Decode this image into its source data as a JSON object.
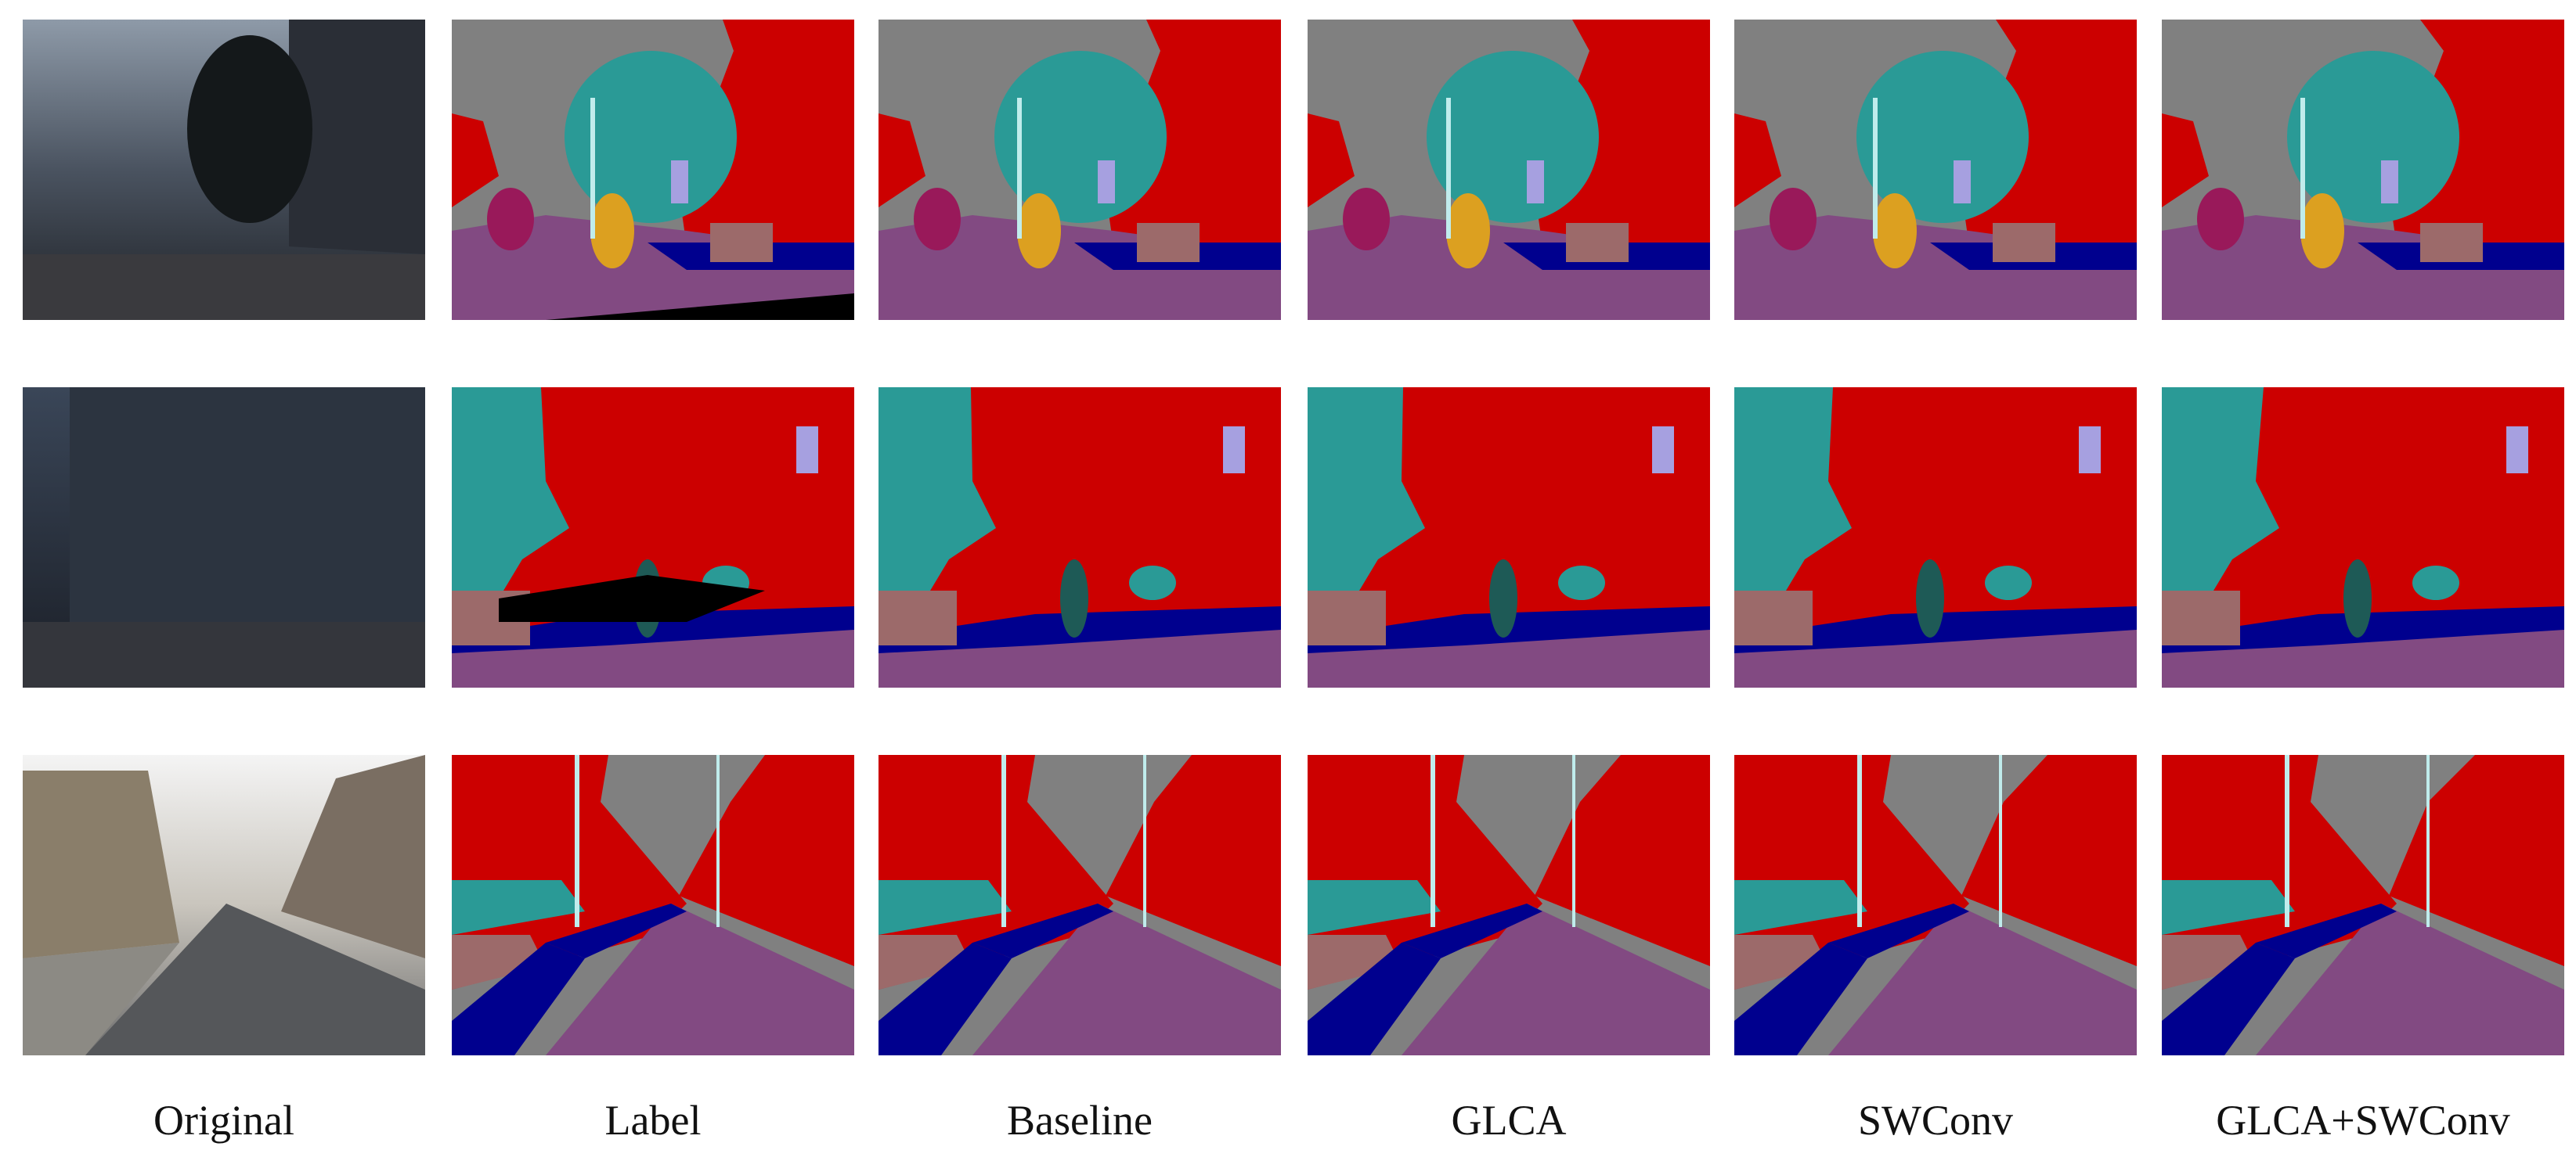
{
  "columns": [
    "Original",
    "Label",
    "Baseline",
    "GLCA",
    "SWConv",
    "GLCA+SWConv"
  ]
}
